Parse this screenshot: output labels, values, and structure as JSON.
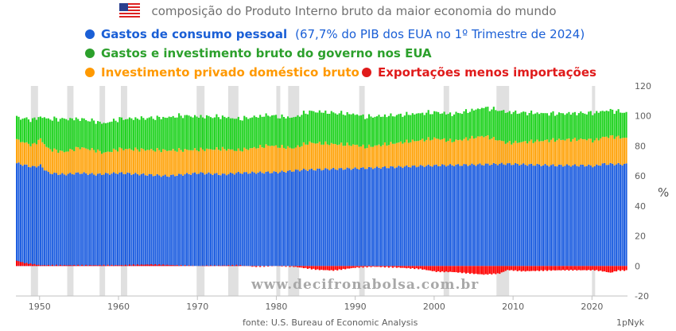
{
  "title": "composição do Produto Interno bruto da maior economia do mundo",
  "legend": {
    "consumption": {
      "label": "Gastos de consumo pessoal",
      "note": "(67,7% do PIB dos EUA no 1º Trimestre de 2024)",
      "color": "#1a5fd6"
    },
    "government": {
      "label": "Gastos e investimento bruto do governo nos EUA",
      "color": "#2ca02c"
    },
    "investment": {
      "label": "Investimento privado doméstico bruto",
      "color": "#ff9900"
    },
    "net_exports": {
      "label": "Exportações menos importações",
      "color": "#e01b1b"
    }
  },
  "colors": {
    "consumption": "#1f5fe0",
    "government": "#22d322",
    "investment": "#ffa510",
    "net_exports": "#ff0000",
    "recession": "#e0e0e0"
  },
  "y_unit": "%",
  "watermark": "www.decifronabolsa.com.br",
  "source": "fonte:  U.S. Bureau of Economic Analysis",
  "credit": "1pNyk",
  "chart_data": {
    "type": "bar",
    "stacked": true,
    "frequency": "quarterly",
    "x_start": 1947,
    "x_end": 2024,
    "xlim": [
      1947,
      2024.5
    ],
    "ylim": [
      -20,
      120
    ],
    "x_ticks": [
      1950,
      1960,
      1970,
      1980,
      1990,
      2000,
      2010,
      2020
    ],
    "y_ticks": [
      -20,
      0,
      20,
      40,
      60,
      80,
      100,
      120
    ],
    "recessions": [
      [
        1948.9,
        1949.8
      ],
      [
        1953.5,
        1954.3
      ],
      [
        1957.6,
        1958.3
      ],
      [
        1960.3,
        1961.1
      ],
      [
        1969.9,
        1970.9
      ],
      [
        1973.9,
        1975.2
      ],
      [
        1980.0,
        1980.5
      ],
      [
        1981.5,
        1982.9
      ],
      [
        1990.5,
        1991.2
      ],
      [
        2001.2,
        2001.9
      ],
      [
        2007.9,
        2009.5
      ],
      [
        2020.0,
        2020.4
      ]
    ],
    "series": [
      {
        "name": "Gastos de consumo pessoal",
        "anchors": [
          [
            1947,
            68.5
          ],
          [
            1949,
            66
          ],
          [
            1950,
            67
          ],
          [
            1951,
            62
          ],
          [
            1953,
            61
          ],
          [
            1955,
            62
          ],
          [
            1957,
            61
          ],
          [
            1960,
            62
          ],
          [
            1966,
            60
          ],
          [
            1970,
            62
          ],
          [
            1973,
            61
          ],
          [
            1975,
            62
          ],
          [
            1980,
            62.5
          ],
          [
            1983,
            64
          ],
          [
            1986,
            64.5
          ],
          [
            1990,
            65
          ],
          [
            1995,
            66
          ],
          [
            2000,
            67
          ],
          [
            2005,
            67.5
          ],
          [
            2008,
            68
          ],
          [
            2009,
            68
          ],
          [
            2012,
            67.5
          ],
          [
            2015,
            67
          ],
          [
            2019,
            67
          ],
          [
            2020,
            66.5
          ],
          [
            2021,
            68
          ],
          [
            2024,
            67.7
          ]
        ]
      },
      {
        "name": "Investimento privado doméstico bruto",
        "anchors": [
          [
            1947,
            15.5
          ],
          [
            1949,
            14.5
          ],
          [
            1950,
            17.5
          ],
          [
            1951,
            16
          ],
          [
            1953,
            15
          ],
          [
            1955,
            17
          ],
          [
            1957,
            16
          ],
          [
            1958,
            14
          ],
          [
            1960,
            16
          ],
          [
            1966,
            17
          ],
          [
            1970,
            15.5
          ],
          [
            1973,
            17
          ],
          [
            1975,
            15
          ],
          [
            1979,
            18
          ],
          [
            1980,
            17
          ],
          [
            1982,
            15
          ],
          [
            1984,
            18
          ],
          [
            1986,
            17
          ],
          [
            1990,
            15.5
          ],
          [
            1991,
            14
          ],
          [
            1995,
            16
          ],
          [
            2000,
            18
          ],
          [
            2002,
            16
          ],
          [
            2006,
            19
          ],
          [
            2009,
            14
          ],
          [
            2012,
            15.5
          ],
          [
            2015,
            17
          ],
          [
            2019,
            17.5
          ],
          [
            2020,
            17
          ],
          [
            2022,
            18.5
          ],
          [
            2024,
            17.5
          ]
        ]
      },
      {
        "name": "Gastos e investimento bruto do governo nos EUA",
        "anchors": [
          [
            1947,
            15
          ],
          [
            1949,
            17
          ],
          [
            1950,
            15
          ],
          [
            1951,
            20
          ],
          [
            1953,
            22
          ],
          [
            1955,
            19
          ],
          [
            1960,
            20
          ],
          [
            1966,
            22
          ],
          [
            1968,
            23
          ],
          [
            1970,
            22
          ],
          [
            1975,
            21
          ],
          [
            1980,
            20
          ],
          [
            1985,
            21
          ],
          [
            1990,
            20.5
          ],
          [
            1995,
            18.5
          ],
          [
            2000,
            17.5
          ],
          [
            2005,
            18.5
          ],
          [
            2009,
            20.5
          ],
          [
            2012,
            19
          ],
          [
            2015,
            17.5
          ],
          [
            2019,
            17.5
          ],
          [
            2020,
            18.5
          ],
          [
            2021,
            17.5
          ],
          [
            2024,
            17
          ]
        ]
      },
      {
        "name": "Exportações menos importações",
        "anchors": [
          [
            1947,
            3.5
          ],
          [
            1948,
            2
          ],
          [
            1950,
            0.5
          ],
          [
            1955,
            0.5
          ],
          [
            1960,
            0.5
          ],
          [
            1964,
            1
          ],
          [
            1970,
            0
          ],
          [
            1975,
            0.5
          ],
          [
            1977,
            -0.5
          ],
          [
            1980,
            0
          ],
          [
            1982,
            -0.5
          ],
          [
            1985,
            -2.5
          ],
          [
            1987,
            -3
          ],
          [
            1990,
            -1
          ],
          [
            1992,
            -0.5
          ],
          [
            1995,
            -1
          ],
          [
            1998,
            -2
          ],
          [
            2000,
            -3.8
          ],
          [
            2002,
            -4
          ],
          [
            2006,
            -5.7
          ],
          [
            2008,
            -5
          ],
          [
            2009,
            -2.7
          ],
          [
            2011,
            -3.5
          ],
          [
            2014,
            -3
          ],
          [
            2016,
            -2.8
          ],
          [
            2019,
            -2.8
          ],
          [
            2020,
            -2.8
          ],
          [
            2021,
            -3.5
          ],
          [
            2022,
            -4.5
          ],
          [
            2023,
            -3
          ],
          [
            2024,
            -3
          ]
        ]
      }
    ]
  }
}
